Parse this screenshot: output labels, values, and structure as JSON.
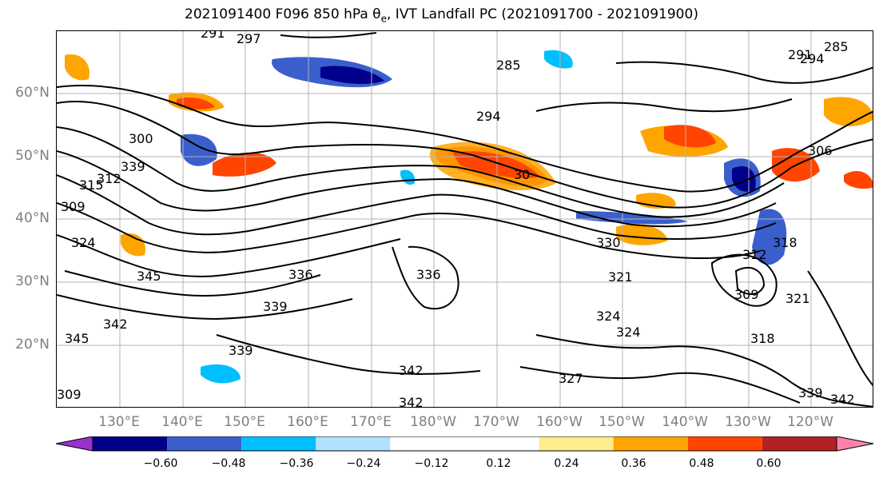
{
  "title": {
    "prefix": "2021091400 F096 850 hPa θ",
    "sub": "e",
    "suffix": ", IVT Landfall PC (2021091700 - 2021091900)"
  },
  "lat_labels": [
    "60°N",
    "50°N",
    "40°N",
    "30°N",
    "20°N"
  ],
  "lon_labels": [
    "130°E",
    "140°E",
    "150°E",
    "160°E",
    "170°E",
    "180°W",
    "170°W",
    "160°W",
    "150°W",
    "140°W",
    "130°W",
    "120°W"
  ],
  "contour_labels": [
    "291",
    "297",
    "285",
    "294",
    "291",
    "285",
    "294",
    "306",
    "300",
    "315",
    "312",
    "309",
    "339",
    "324",
    "345",
    "336",
    "330",
    "321",
    "309",
    "321",
    "336",
    "339",
    "345",
    "342",
    "339",
    "342",
    "342",
    "324",
    "324",
    "327",
    "318",
    "339",
    "342",
    "312",
    "318",
    "30",
    "309"
  ],
  "colorbar": {
    "colors": [
      "#9a32cd",
      "#00008b",
      "#3a5fcd",
      "#00bfff",
      "#b0e2ff",
      "#ffffff",
      "#ffffff",
      "#ffec8b",
      "#ffa500",
      "#ff4500",
      "#b22222",
      "#ff82ab"
    ],
    "ticks": [
      "−0.60",
      "−0.48",
      "−0.36",
      "−0.24",
      "−0.12",
      "0.12",
      "0.24",
      "0.36",
      "0.48",
      "0.60"
    ]
  }
}
